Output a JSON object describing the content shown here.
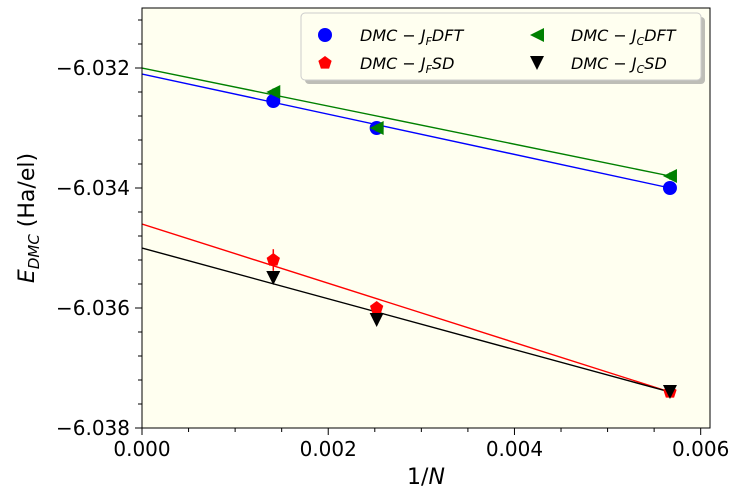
{
  "chart_data": {
    "type": "scatter",
    "xlabel": "1/N",
    "ylabel": "E_DMC (Ha/el)",
    "ylabel_main": "E",
    "ylabel_sub": "DMC",
    "ylabel_units": " (Ha/el)",
    "xlabel_main": "1/",
    "xlabel_var": "N",
    "xlim": [
      0.0,
      0.0061
    ],
    "ylim": [
      -6.038,
      -6.031
    ],
    "xticks": [
      0.0,
      0.002,
      0.004,
      0.006
    ],
    "xtick_labels": [
      "0.000",
      "0.002",
      "0.004",
      "0.006"
    ],
    "yticks": [
      -6.038,
      -6.036,
      -6.034,
      -6.032
    ],
    "ytick_labels": [
      "−6.038",
      "−6.036",
      "−6.034",
      "−6.032"
    ],
    "background": "#fffff0",
    "legend_location": "top-right",
    "series": [
      {
        "name": "DMC − J_F DFT",
        "label_parts": [
          "DMC − J",
          "F",
          "DFT"
        ],
        "marker": "circle",
        "color": "#0000ff",
        "x": [
          0.00141,
          0.00252,
          0.00567
        ],
        "y": [
          -6.03255,
          -6.033,
          -6.034
        ],
        "yerr": [
          8e-05,
          8e-05,
          8e-05
        ],
        "fit_x": [
          0.0,
          0.00567
        ],
        "fit_y": [
          -6.0321,
          -6.034
        ]
      },
      {
        "name": "DMC − J_F SD",
        "label_parts": [
          "DMC − J",
          "F",
          "SD"
        ],
        "marker": "pentagon",
        "color": "#ff0000",
        "x": [
          0.00141,
          0.00252,
          0.00567
        ],
        "y": [
          -6.0352,
          -6.036,
          -6.0374
        ],
        "yerr": [
          0.00018,
          0.0001,
          8e-05
        ],
        "fit_x": [
          0.0,
          0.00567
        ],
        "fit_y": [
          -6.0346,
          -6.0374
        ]
      },
      {
        "name": "DMC − J_C DFT",
        "label_parts": [
          "DMC − J",
          "C",
          "DFT"
        ],
        "marker": "triangle-left",
        "color": "#008000",
        "x": [
          0.00141,
          0.00252,
          0.00567
        ],
        "y": [
          -6.0324,
          -6.033,
          -6.0338
        ],
        "yerr": [
          6e-05,
          6e-05,
          6e-05
        ],
        "fit_x": [
          0.0,
          0.00567
        ],
        "fit_y": [
          -6.032,
          -6.0338
        ]
      },
      {
        "name": "DMC − J_C SD",
        "label_parts": [
          "DMC − J",
          "C",
          "SD"
        ],
        "marker": "triangle-down",
        "color": "#000000",
        "x": [
          0.00141,
          0.00252,
          0.00567
        ],
        "y": [
          -6.0355,
          -6.0362,
          -6.0374
        ],
        "yerr": [
          6e-05,
          6e-05,
          6e-05
        ],
        "fit_x": [
          0.0,
          0.00567
        ],
        "fit_y": [
          -6.035,
          -6.0374
        ]
      }
    ]
  }
}
